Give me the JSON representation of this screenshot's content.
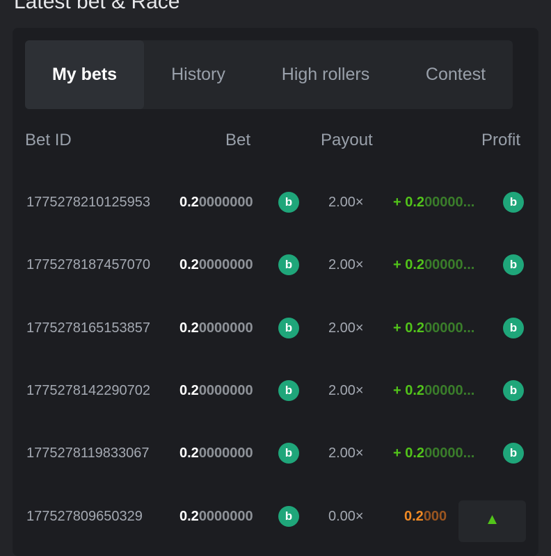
{
  "title": "Latest bet & Race",
  "tabs": [
    {
      "label": "My bets",
      "active": true
    },
    {
      "label": "History"
    },
    {
      "label": "High rollers"
    },
    {
      "label": "Contest"
    }
  ],
  "columns": {
    "id": "Bet ID",
    "bet": "Bet",
    "payout": "Payout",
    "profit": "Profit"
  },
  "coin_icon": "bc-coin-icon",
  "colors": {
    "win": "#52c41a",
    "loss": "#f08a24",
    "coin": "#1fa67a"
  },
  "rows": [
    {
      "id": "1775278210125953",
      "bet_bold": "0.2",
      "bet_rest": "0000000",
      "payout": "2.00×",
      "profit_sign": "+ ",
      "profit_bold": "0.2",
      "profit_rest": "00000...",
      "result": "win"
    },
    {
      "id": "1775278187457070",
      "bet_bold": "0.2",
      "bet_rest": "0000000",
      "payout": "2.00×",
      "profit_sign": "+ ",
      "profit_bold": "0.2",
      "profit_rest": "00000...",
      "result": "win"
    },
    {
      "id": "1775278165153857",
      "bet_bold": "0.2",
      "bet_rest": "0000000",
      "payout": "2.00×",
      "profit_sign": "+ ",
      "profit_bold": "0.2",
      "profit_rest": "00000...",
      "result": "win"
    },
    {
      "id": "1775278142290702",
      "bet_bold": "0.2",
      "bet_rest": "0000000",
      "payout": "2.00×",
      "profit_sign": "+ ",
      "profit_bold": "0.2",
      "profit_rest": "00000...",
      "result": "win"
    },
    {
      "id": "1775278119833067",
      "bet_bold": "0.2",
      "bet_rest": "0000000",
      "payout": "2.00×",
      "profit_sign": "+ ",
      "profit_bold": "0.2",
      "profit_rest": "00000...",
      "result": "win"
    },
    {
      "id": "177527809650329",
      "bet_bold": "0.2",
      "bet_rest": "0000000",
      "payout": "0.00×",
      "profit_sign": "",
      "profit_bold": "0.2",
      "profit_rest": "000",
      "result": "loss"
    }
  ],
  "scroll_top_icon": "chevron-up-icon"
}
